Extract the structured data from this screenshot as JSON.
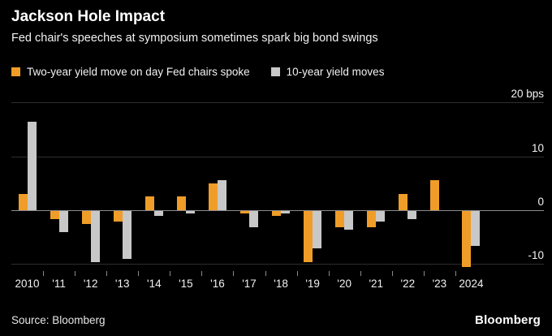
{
  "header": {
    "title": "Jackson Hole Impact",
    "subtitle": "Fed chair's speeches at symposium sometimes spark big bond swings"
  },
  "legend": [
    {
      "label": "Two-year yield move on day Fed chairs spoke",
      "color": "#EF9D28"
    },
    {
      "label": "10-year yield moves",
      "color": "#C8C8C8"
    }
  ],
  "chart_data": {
    "type": "bar",
    "title": "Jackson Hole Impact",
    "subtitle": "Fed chair's speeches at symposium sometimes spark big bond swings",
    "categories": [
      "2010",
      "'11",
      "'12",
      "'13",
      "'14",
      "'15",
      "'16",
      "'17",
      "'18",
      "'19",
      "'20",
      "'21",
      "'22",
      "'23",
      "2024"
    ],
    "series": [
      {
        "name": "Two-year yield move on day Fed chairs spoke",
        "color": "#EF9D28",
        "values": [
          3,
          -1.5,
          -2.5,
          -2,
          2.5,
          2.5,
          5,
          -0.5,
          -1,
          -9.5,
          -3,
          -3,
          3,
          5.5,
          -10.5
        ]
      },
      {
        "name": "10-year yield moves",
        "color": "#C8C8C8",
        "values": [
          16.5,
          -4,
          -9.5,
          -9,
          -1,
          -0.5,
          5.5,
          -3,
          -0.5,
          -7,
          -3.5,
          -2,
          -1.5,
          0,
          -6.5
        ]
      }
    ],
    "xlabel": "",
    "ylabel": "bps",
    "y_ticks": [
      {
        "value": 20,
        "label": "20 bps"
      },
      {
        "value": 10,
        "label": "10"
      },
      {
        "value": 0,
        "label": "0"
      },
      {
        "value": -10,
        "label": "-10"
      }
    ],
    "ylim": [
      -13.8,
      24
    ],
    "grid": true,
    "legend_position": "top"
  },
  "footer": {
    "source": "Source: Bloomberg",
    "logo": "Bloomberg"
  }
}
